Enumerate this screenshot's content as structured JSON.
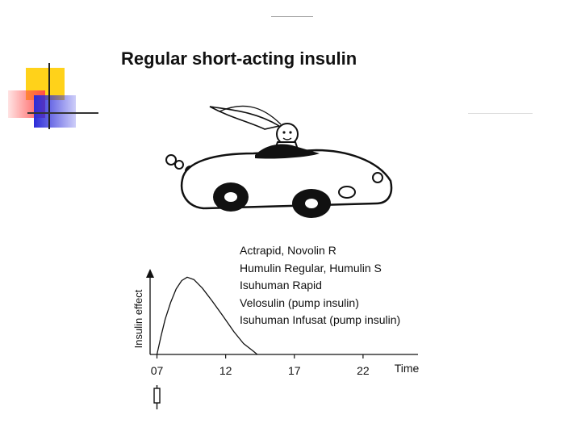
{
  "slide": {
    "title": "Regular short-acting insulin",
    "brands": [
      "Actrapid, Novolin R",
      "Humulin Regular, Humulin S",
      "Isuhuman Rapid",
      "Velosulin (pump insulin)",
      "Isuhuman Infusat (pump insulin)"
    ]
  },
  "icons": {
    "car": "car-with-driver-icon",
    "syringe": "syringe-icon"
  },
  "chart_data": {
    "type": "line",
    "ylabel": "Insulin effect",
    "xlabel": "Time",
    "x_tick_labels": [
      "07",
      "12",
      "17",
      "22"
    ],
    "x_ticks": [
      7,
      12,
      17,
      22
    ],
    "xlim": [
      6.5,
      26
    ],
    "ylim": [
      0,
      1
    ],
    "show_y_values": false,
    "grid": false,
    "series": [
      {
        "x": [
          7.0,
          7.3,
          7.6,
          8.0,
          8.4,
          8.8,
          9.2,
          9.7,
          10.3,
          11.0,
          11.8,
          12.6,
          13.3,
          14.0,
          14.3
        ],
        "y": [
          0.0,
          0.22,
          0.42,
          0.62,
          0.78,
          0.88,
          0.92,
          0.89,
          0.79,
          0.64,
          0.46,
          0.27,
          0.13,
          0.04,
          0.0
        ]
      }
    ],
    "injection_time": 7
  }
}
